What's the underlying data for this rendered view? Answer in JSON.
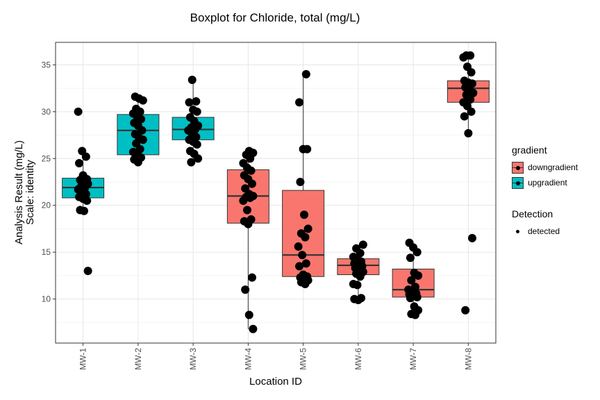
{
  "chart_data": {
    "type": "boxplot",
    "title": "Boxplot for Chloride, total (mg/L)",
    "xlabel": "Location ID",
    "ylabel": [
      "Analysis Result (mg/L)",
      "Scale: identity"
    ],
    "ylim": [
      5.3,
      37.4
    ],
    "yticks": [
      10,
      15,
      20,
      25,
      30,
      35
    ],
    "grid": true,
    "legend": {
      "placement": "right",
      "fill_title": "gradient",
      "fill_items": [
        {
          "label": "downgradient",
          "color": "#F8766D"
        },
        {
          "label": "upgradient",
          "color": "#00BFC4"
        }
      ],
      "shape_title": "Detection",
      "shape_items": [
        {
          "label": "detected"
        }
      ]
    },
    "categories": [
      "MW-1",
      "MW-2",
      "MW-3",
      "MW-4",
      "MW-5",
      "MW-6",
      "MW-7",
      "MW-8"
    ],
    "boxes": [
      {
        "label": "MW-1",
        "gradient": "upgradient",
        "q1": 20.8,
        "median": 21.9,
        "q3": 22.9,
        "lower": 19.4,
        "upper": 25.8,
        "points": [
          30,
          25.8,
          25.2,
          24.5,
          23.2,
          22.8,
          22.7,
          22.6,
          22.3,
          22,
          21.9,
          21.7,
          21.5,
          21.2,
          20.9,
          20.7,
          20.5,
          19.5,
          19.4,
          13
        ]
      },
      {
        "label": "MW-2",
        "gradient": "upgradient",
        "q1": 25.4,
        "median": 28,
        "q3": 29.7,
        "lower": 24.6,
        "upper": 31.6,
        "points": [
          31.6,
          31.4,
          31.2,
          30.3,
          30,
          29.8,
          29.5,
          29.2,
          28.8,
          28.5,
          28,
          27.6,
          27.2,
          27,
          26.6,
          26,
          25.7,
          25.4,
          25.1,
          24.9,
          24.6
        ]
      },
      {
        "label": "MW-3",
        "gradient": "upgradient",
        "q1": 27,
        "median": 28.1,
        "q3": 29.4,
        "lower": 24.5,
        "upper": 33.4,
        "points": [
          33.4,
          31.1,
          31,
          30.2,
          30,
          29.4,
          29,
          28.5,
          28.3,
          28.1,
          28,
          27.6,
          27.3,
          27,
          26.8,
          26.5,
          25.8,
          25.5,
          25,
          24.6
        ]
      },
      {
        "label": "MW-4",
        "gradient": "downgradient",
        "q1": 18.1,
        "median": 21,
        "q3": 23.8,
        "lower": 6.8,
        "upper": 25.8,
        "points": [
          25.8,
          25.6,
          25.4,
          25,
          24.5,
          24,
          23.7,
          23.2,
          22.8,
          22.3,
          21.8,
          21.2,
          21,
          20.9,
          20.8,
          20.5,
          19.5,
          18.5,
          18.3,
          18,
          12.3,
          11,
          8.3,
          6.8
        ]
      },
      {
        "label": "MW-5",
        "gradient": "downgradient",
        "q1": 12.4,
        "median": 14.7,
        "q3": 21.6,
        "lower": 11.6,
        "upper": 34,
        "points": [
          34,
          31,
          26,
          26,
          22.5,
          19,
          17.5,
          17,
          16.6,
          15.6,
          14.7,
          13.8,
          13.5,
          12.6,
          12.4,
          12.3,
          12.2,
          12,
          11.8,
          11.6
        ]
      },
      {
        "label": "MW-6",
        "gradient": "downgradient",
        "q1": 12.6,
        "median": 13.6,
        "q3": 14.3,
        "lower": 10,
        "upper": 15.8,
        "points": [
          15.8,
          15.4,
          14.9,
          14.5,
          14.2,
          14,
          13.8,
          13.6,
          13.5,
          13.3,
          13.1,
          12.9,
          12.7,
          12.4,
          11.6,
          11.5,
          10.1,
          10,
          9.9
        ]
      },
      {
        "label": "MW-7",
        "gradient": "downgradient",
        "q1": 10.2,
        "median": 11,
        "q3": 13.2,
        "lower": 8.3,
        "upper": 16,
        "points": [
          16,
          15.5,
          15,
          14.4,
          12.8,
          12.5,
          12,
          11.3,
          11,
          10.8,
          10.6,
          10.5,
          10.3,
          10.2,
          10.1,
          9.2,
          8.8,
          8.4,
          8.3
        ]
      },
      {
        "label": "MW-8",
        "gradient": "downgradient",
        "q1": 31,
        "median": 32.5,
        "q3": 33.3,
        "lower": 27.7,
        "upper": 36,
        "points": [
          36,
          36,
          35.8,
          34.8,
          34.2,
          33.3,
          33.1,
          33,
          32.6,
          32.4,
          32,
          31.8,
          31.3,
          31,
          30.6,
          30,
          29.5,
          27.7,
          16.5,
          8.8
        ]
      }
    ]
  }
}
